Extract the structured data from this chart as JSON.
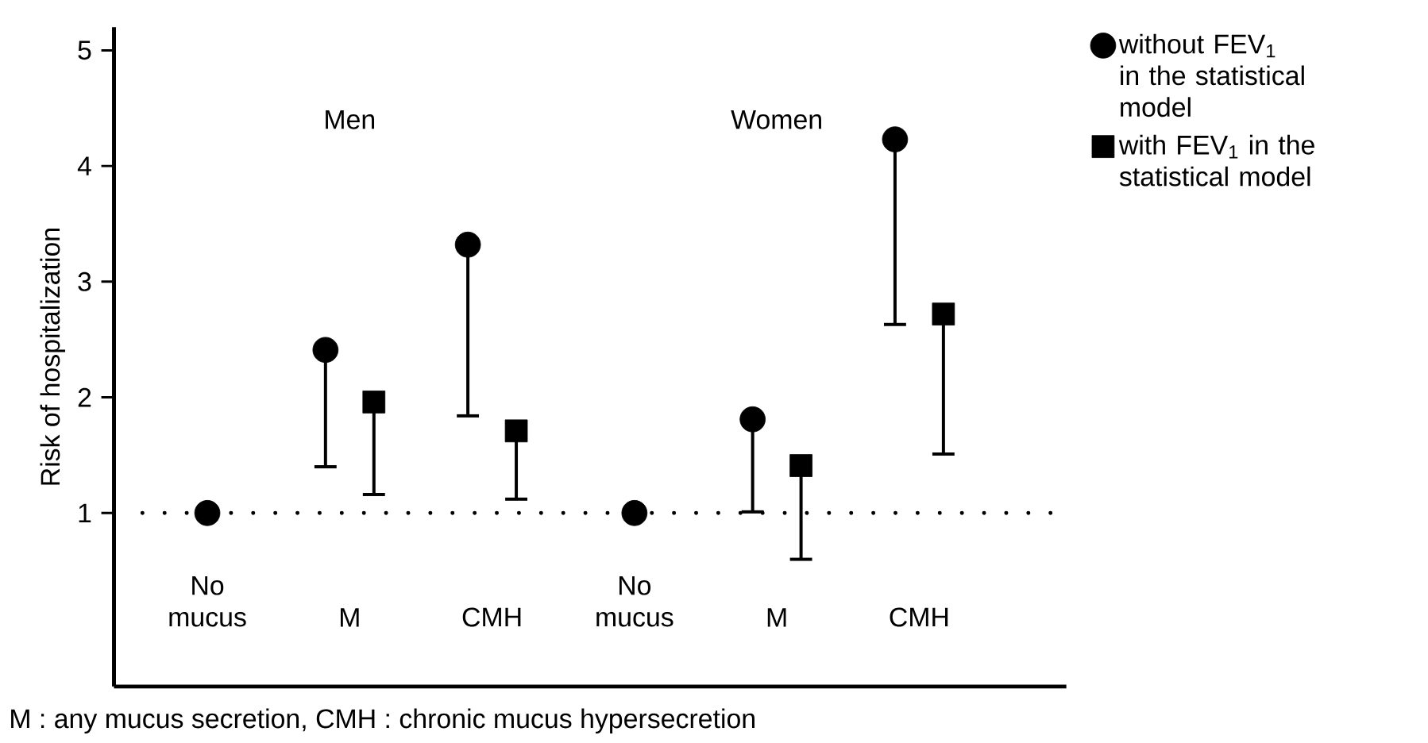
{
  "chart_data": {
    "type": "scatter",
    "ylabel": "Risk of hospitalization",
    "categories": [
      "No mucus",
      "M",
      "CMH",
      "No mucus",
      "M",
      "CMH"
    ],
    "series": [
      {
        "name": "without FEV$_{1}$ in the statistical model",
        "color": "#000000",
        "marker": "circle",
        "values": [
          1.0,
          2.41,
          3.32,
          1.0,
          1.81,
          4.23
        ],
        "errors": [
          null,
          [
            1.4,
            2.41
          ],
          [
            1.84,
            3.32
          ],
          null,
          [
            1.01,
            1.81
          ],
          [
            2.63,
            4.23
          ]
        ]
      },
      {
        "name": "with FEV$_{1}$ in the statistical model",
        "color": "#000000",
        "marker": "square",
        "values": [
          null,
          1.96,
          1.71,
          null,
          1.41,
          2.72
        ],
        "errors": [
          null,
          [
            1.16,
            1.96
          ],
          [
            1.12,
            1.71
          ],
          null,
          [
            0.6,
            1.41
          ],
          [
            1.51,
            2.72
          ]
        ]
      }
    ],
    "ylim": [
      -0.5,
      5.2
    ],
    "yticks": [
      1,
      2,
      3,
      4,
      5
    ],
    "ref_lines": [
      {
        "axis": "y",
        "value": 1,
        "color": "#000000",
        "line_style": "dotted"
      }
    ],
    "legend": "right",
    "grid": false,
    "annotations": [
      "Men",
      "Women",
      "M : any mucus secretion,  CMH : chronic mucus hypersecretion"
    ]
  }
}
